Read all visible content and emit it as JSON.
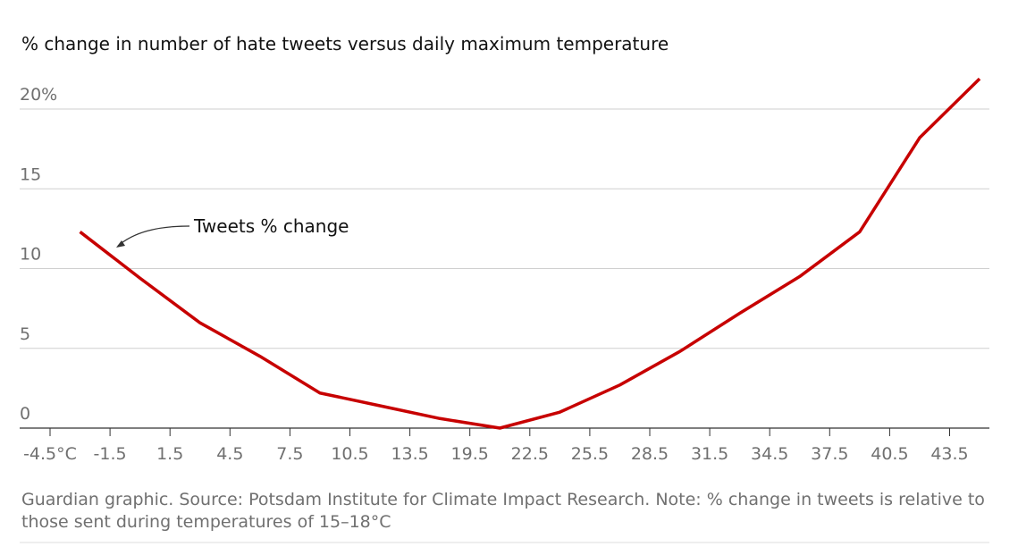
{
  "chart_data": {
    "type": "line",
    "title": "% change in number of hate tweets versus daily maximum temperature",
    "annotation": "Tweets % change",
    "footnote": [
      "Guardian graphic. Source: Potsdam Institute for Climate Impact Research. Note: % change in tweets is relative to",
      "those sent during temperatures of 15–18°C"
    ],
    "categories": [
      "-4.5°C",
      "-1.5",
      "1.5",
      "4.5",
      "7.5",
      "10.5",
      "13.5",
      "19.5",
      "22.5",
      "25.5",
      "28.5",
      "31.5",
      "34.5",
      "37.5",
      "40.5",
      "43.5"
    ],
    "series": [
      {
        "name": "Tweets % change",
        "color": "#c70000",
        "values": [
          12.3,
          9.4,
          6.6,
          4.5,
          2.2,
          1.4,
          0.6,
          0.0,
          1.0,
          2.7,
          4.8,
          7.2,
          9.5,
          12.3,
          18.2,
          21.9
        ]
      }
    ],
    "ylim": [
      0,
      20
    ],
    "yticks": [
      0,
      5,
      10,
      15,
      {
        "value": 20,
        "label": "20%"
      }
    ],
    "grid": true
  }
}
